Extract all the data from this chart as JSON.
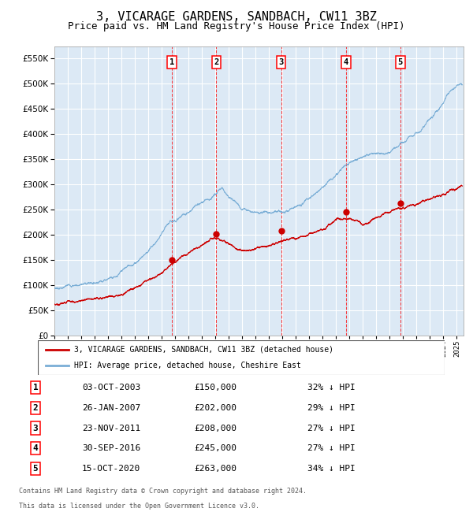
{
  "title": "3, VICARAGE GARDENS, SANDBACH, CW11 3BZ",
  "subtitle": "Price paid vs. HM Land Registry's House Price Index (HPI)",
  "legend_red": "3, VICARAGE GARDENS, SANDBACH, CW11 3BZ (detached house)",
  "legend_blue": "HPI: Average price, detached house, Cheshire East",
  "footer1": "Contains HM Land Registry data © Crown copyright and database right 2024.",
  "footer2": "This data is licensed under the Open Government Licence v3.0.",
  "transactions": [
    {
      "num": 1,
      "date": "03-OCT-2003",
      "price": 150000,
      "pct": "32% ↓ HPI",
      "x_year": 2003.75
    },
    {
      "num": 2,
      "date": "26-JAN-2007",
      "price": 202000,
      "pct": "29% ↓ HPI",
      "x_year": 2007.07
    },
    {
      "num": 3,
      "date": "23-NOV-2011",
      "price": 208000,
      "pct": "27% ↓ HPI",
      "x_year": 2011.9
    },
    {
      "num": 4,
      "date": "30-SEP-2016",
      "price": 245000,
      "pct": "27% ↓ HPI",
      "x_year": 2016.75
    },
    {
      "num": 5,
      "date": "15-OCT-2020",
      "price": 263000,
      "pct": "34% ↓ HPI",
      "x_year": 2020.79
    }
  ],
  "ylim": [
    0,
    575000
  ],
  "xlim_start": 1995.0,
  "xlim_end": 2025.5,
  "background_color": "#dce9f5",
  "grid_color": "#ffffff",
  "red_color": "#cc0000",
  "blue_color": "#7aaed6",
  "title_fontsize": 11,
  "subtitle_fontsize": 9
}
